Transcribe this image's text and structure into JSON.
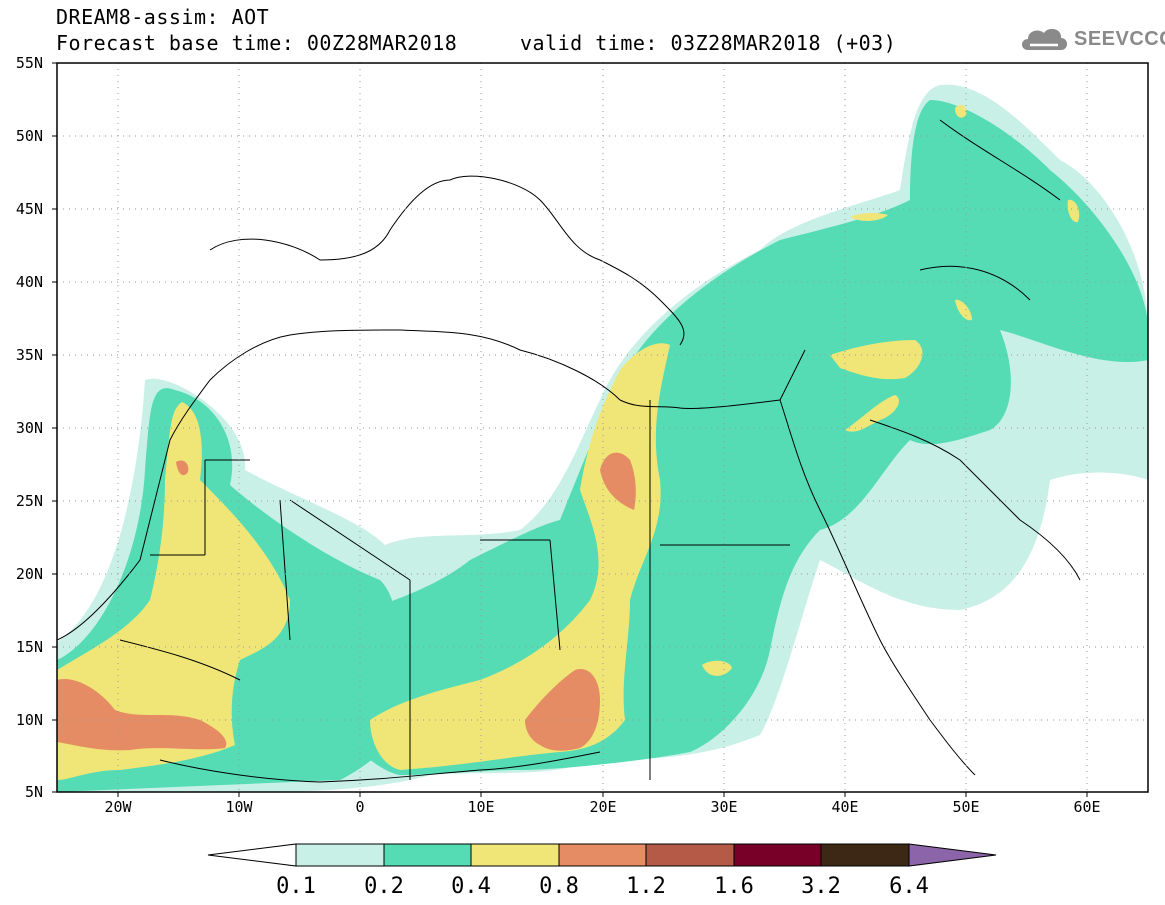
{
  "header": {
    "title_line1": "DREAM8-assim: AOT",
    "title_line2": "Forecast base time: 00Z28MAR2018     valid time: 03Z28MAR2018 (+03)",
    "logo_text": "SEEVCCC",
    "logo_icon": "cloud-icon"
  },
  "map": {
    "variable": "AOT",
    "lat_range": [
      5,
      55
    ],
    "lon_range": [
      -25,
      65
    ],
    "lat_ticks": [
      "55N",
      "50N",
      "45N",
      "40N",
      "35N",
      "30N",
      "25N",
      "20N",
      "15N",
      "10N",
      "5N"
    ],
    "lon_ticks": [
      "20W",
      "10W",
      "0",
      "10E",
      "20E",
      "30E",
      "40E",
      "50E",
      "60E"
    ],
    "grid": "dotted"
  },
  "colorbar": {
    "labels": [
      "0.1",
      "0.2",
      "0.4",
      "0.8",
      "1.2",
      "1.6",
      "3.2",
      "6.4"
    ],
    "colors": [
      "#ffffff",
      "#c8f0e6",
      "#55dcb4",
      "#f0e678",
      "#e68c64",
      "#b45a46",
      "#780028",
      "#3c2814",
      "#8c64aa"
    ]
  }
}
